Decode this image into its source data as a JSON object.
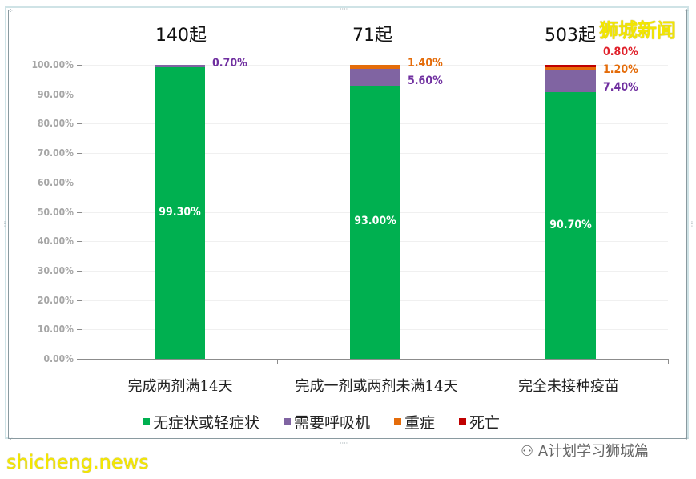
{
  "watermark": {
    "brand": "狮城新闻",
    "site": "shicheng.news",
    "account": "A计划学习狮城篇",
    "wechat_icon": "wechat-icon"
  },
  "counts": [
    "140起",
    "71起",
    "503起"
  ],
  "legend": [
    {
      "label": "无症状或轻症状",
      "color": "#00b050"
    },
    {
      "label": "需要呼吸机",
      "color": "#8064a2"
    },
    {
      "label": "重症",
      "color": "#e46c0a"
    },
    {
      "label": "死亡",
      "color": "#c00000"
    }
  ],
  "label_colors": {
    "respirator": "#7030a0",
    "severe": "#e46c0a",
    "death": "#e0202a"
  },
  "chart_data": {
    "type": "bar",
    "stacked": true,
    "title": "",
    "xlabel": "",
    "ylabel": "",
    "ylim": [
      0,
      100
    ],
    "yticks": [
      "0.00%",
      "10.00%",
      "20.00%",
      "30.00%",
      "40.00%",
      "50.00%",
      "60.00%",
      "70.00%",
      "80.00%",
      "90.00%",
      "100.00%"
    ],
    "categories": [
      "完成两剂满14天",
      "完成一剂或两剂未满14天",
      "完全未接种疫苗"
    ],
    "annotations": [
      "140起",
      "71起",
      "503起"
    ],
    "series": [
      {
        "name": "无症状或轻症状",
        "color": "#00b050",
        "values": [
          99.3,
          93.0,
          90.7
        ],
        "labels": [
          "99.30%",
          "93.00%",
          "90.70%"
        ]
      },
      {
        "name": "需要呼吸机",
        "color": "#8064a2",
        "values": [
          0.7,
          5.6,
          7.4
        ],
        "labels": [
          "0.70%",
          "5.60%",
          "7.40%"
        ]
      },
      {
        "name": "重症",
        "color": "#e46c0a",
        "values": [
          0,
          1.4,
          1.2
        ],
        "labels": [
          "",
          "1.40%",
          "1.20%"
        ]
      },
      {
        "name": "死亡",
        "color": "#c00000",
        "values": [
          0,
          0,
          0.8
        ],
        "labels": [
          "",
          "",
          "0.80%"
        ]
      }
    ],
    "grid": true,
    "legend_position": "bottom"
  }
}
